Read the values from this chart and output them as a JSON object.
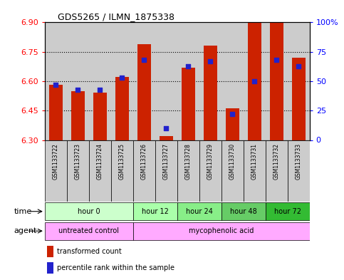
{
  "title": "GDS5265 / ILMN_1875338",
  "samples": [
    "GSM1133722",
    "GSM1133723",
    "GSM1133724",
    "GSM1133725",
    "GSM1133726",
    "GSM1133727",
    "GSM1133728",
    "GSM1133729",
    "GSM1133730",
    "GSM1133731",
    "GSM1133732",
    "GSM1133733"
  ],
  "transformed_count": [
    6.58,
    6.55,
    6.54,
    6.62,
    6.79,
    6.32,
    6.67,
    6.78,
    6.46,
    6.9,
    6.91,
    6.72
  ],
  "percentile_rank": [
    47,
    43,
    43,
    53,
    68,
    10,
    63,
    67,
    22,
    50,
    68,
    63
  ],
  "ylim_left": [
    6.3,
    6.9
  ],
  "ylim_right": [
    0,
    100
  ],
  "yticks_left": [
    6.3,
    6.45,
    6.6,
    6.75,
    6.9
  ],
  "yticks_right": [
    0,
    25,
    50,
    75,
    100
  ],
  "bar_color": "#cc2200",
  "dot_color": "#2222cc",
  "sample_bg_color": "#cccccc",
  "base_value": 6.3,
  "bar_width": 0.6,
  "dot_size": 18,
  "time_groups": [
    {
      "label": "hour 0",
      "start": 0,
      "end": 4,
      "color": "#ccffcc"
    },
    {
      "label": "hour 12",
      "start": 4,
      "end": 6,
      "color": "#aaffaa"
    },
    {
      "label": "hour 24",
      "start": 6,
      "end": 8,
      "color": "#88ee88"
    },
    {
      "label": "hour 48",
      "start": 8,
      "end": 10,
      "color": "#66cc66"
    },
    {
      "label": "hour 72",
      "start": 10,
      "end": 12,
      "color": "#33bb33"
    }
  ],
  "agent_groups": [
    {
      "label": "untreated control",
      "start": 0,
      "end": 4,
      "color": "#ffaaff"
    },
    {
      "label": "mycophenolic acid",
      "start": 4,
      "end": 12,
      "color": "#ffaaff"
    }
  ]
}
